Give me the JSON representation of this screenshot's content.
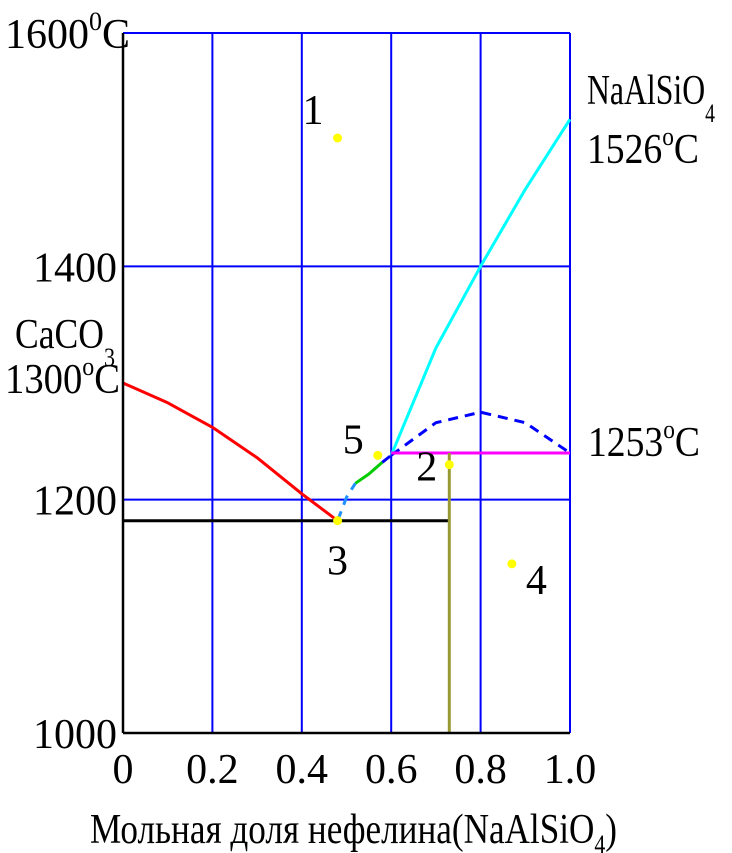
{
  "chart_data": {
    "type": "line",
    "title": "",
    "xlabel": {
      "main": "Мольная доля нефелина(NaAlSiO",
      "sub": "4",
      "end": ")"
    },
    "ylabel": "",
    "xlim": [
      0,
      1.0
    ],
    "ylim": [
      1000,
      1600
    ],
    "x_ticks": [
      {
        "value": 0,
        "label": "0"
      },
      {
        "value": 0.2,
        "label": "0.2"
      },
      {
        "value": 0.4,
        "label": "0.4"
      },
      {
        "value": 0.6,
        "label": "0.6"
      },
      {
        "value": 0.8,
        "label": "0.8"
      },
      {
        "value": 1.0,
        "label": "1.0"
      }
    ],
    "y_ticks": [
      {
        "value": 1000,
        "label": "1000"
      },
      {
        "value": 1200,
        "label": "1200"
      },
      {
        "value": 1400,
        "label": "1400"
      },
      {
        "value": 1600,
        "label": "1600",
        "sup": "0",
        "suffix": "C"
      }
    ],
    "grid": true,
    "grid_color": "#0000ff",
    "series": [
      {
        "color": "#ff0000",
        "dash": false,
        "x": [
          0,
          0.1,
          0.2,
          0.3,
          0.4,
          0.48
        ],
        "y": [
          1300,
          1283,
          1262,
          1236,
          1205,
          1182
        ]
      },
      {
        "color": "#1e90ff",
        "dash": true,
        "x": [
          0.48,
          0.5,
          0.52
        ],
        "y": [
          1182,
          1202,
          1214
        ]
      },
      {
        "color": "#00cc00",
        "dash": false,
        "x": [
          0.52,
          0.55,
          0.58
        ],
        "y": [
          1214,
          1222,
          1232
        ]
      },
      {
        "color": "#0000ff",
        "dash": true,
        "x": [
          0.58,
          0.6
        ],
        "y": [
          1232,
          1238
        ]
      },
      {
        "color": "#00ffff",
        "dash": false,
        "x": [
          0.6,
          0.7,
          0.8,
          0.9,
          1.0
        ],
        "y": [
          1238,
          1330,
          1400,
          1466,
          1526
        ]
      },
      {
        "color": "#0000ff",
        "dash": true,
        "x": [
          0.6,
          0.7,
          0.8,
          0.9,
          1.0
        ],
        "y": [
          1238,
          1266,
          1275,
          1266,
          1240
        ]
      },
      {
        "color": "#ff00ff",
        "dash": false,
        "x": [
          0.6,
          1.0
        ],
        "y": [
          1240,
          1240
        ]
      },
      {
        "color": "#000000",
        "dash": false,
        "x": [
          0,
          0.73
        ],
        "y": [
          1182,
          1182
        ]
      },
      {
        "color": "#999933",
        "dash": false,
        "x": [
          0.73,
          0.73
        ],
        "y": [
          1240,
          1000
        ]
      }
    ],
    "points": [
      {
        "label": "1",
        "x": 0.48,
        "y": 1510
      },
      {
        "label": "2",
        "x": 0.73,
        "y": 1230
      },
      {
        "label": "3",
        "x": 0.48,
        "y": 1182
      },
      {
        "label": "4",
        "x": 0.87,
        "y": 1145
      },
      {
        "label": "5",
        "x": 0.57,
        "y": 1238
      }
    ],
    "point_color": "#ffff00",
    "annotations": {
      "nepheline": {
        "main": "NaAlSiO",
        "sub": "4"
      },
      "nepheline_temp": {
        "num": "1526",
        "sup": "o",
        "suffix": "C"
      },
      "calcite": {
        "main": "CaCO",
        "sub": "3"
      },
      "calcite_temp": {
        "num": "1300",
        "sup": "o",
        "suffix": "C"
      },
      "line_temp": {
        "num": "1253",
        "sup": "o",
        "suffix": "C"
      }
    }
  }
}
